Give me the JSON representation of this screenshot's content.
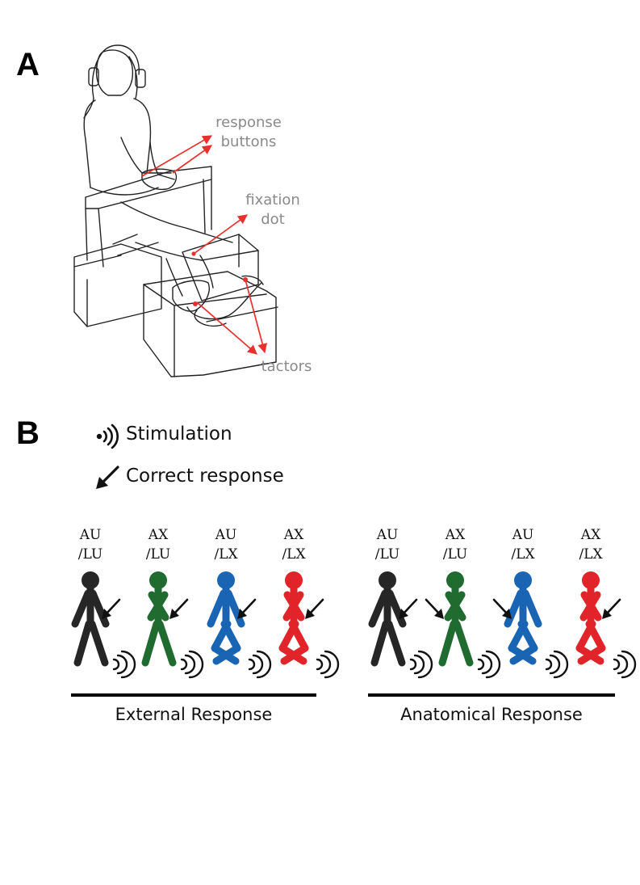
{
  "panel_a": {
    "letter": "A",
    "callouts": {
      "response_buttons": [
        "response",
        "buttons"
      ],
      "fixation_dot": [
        "fixation",
        "dot"
      ],
      "tactors": "tactors"
    }
  },
  "panel_b": {
    "letter": "B",
    "legend": {
      "stimulation": "Stimulation",
      "correct_response": "Correct response"
    },
    "groups": [
      {
        "label": "External Response",
        "figures": [
          {
            "condition": [
              "AU",
              "/LU"
            ],
            "color": "#262626",
            "crossed_arms": false,
            "crossed_legs": false,
            "arrow_side": "right"
          },
          {
            "condition": [
              "AX",
              "/LU"
            ],
            "color": "#1f6b30",
            "crossed_arms": true,
            "crossed_legs": false,
            "arrow_side": "right"
          },
          {
            "condition": [
              "AU",
              "/LX"
            ],
            "color": "#1a64b4",
            "crossed_arms": false,
            "crossed_legs": true,
            "arrow_side": "right"
          },
          {
            "condition": [
              "AX",
              "/LX"
            ],
            "color": "#e0242a",
            "crossed_arms": true,
            "crossed_legs": true,
            "arrow_side": "right"
          }
        ]
      },
      {
        "label": "Anatomical Response",
        "figures": [
          {
            "condition": [
              "AU",
              "/LU"
            ],
            "color": "#262626",
            "crossed_arms": false,
            "crossed_legs": false,
            "arrow_side": "right"
          },
          {
            "condition": [
              "AX",
              "/LU"
            ],
            "color": "#1f6b30",
            "crossed_arms": true,
            "crossed_legs": false,
            "arrow_side": "left"
          },
          {
            "condition": [
              "AU",
              "/LX"
            ],
            "color": "#1a64b4",
            "crossed_arms": false,
            "crossed_legs": true,
            "arrow_side": "left"
          },
          {
            "condition": [
              "AX",
              "/LX"
            ],
            "color": "#e0242a",
            "crossed_arms": true,
            "crossed_legs": true,
            "arrow_side": "right"
          }
        ]
      }
    ]
  },
  "colors": {
    "callout_arrow": "#e8302f",
    "callout_text": "#8a8a8a",
    "line_art": "#222222"
  }
}
